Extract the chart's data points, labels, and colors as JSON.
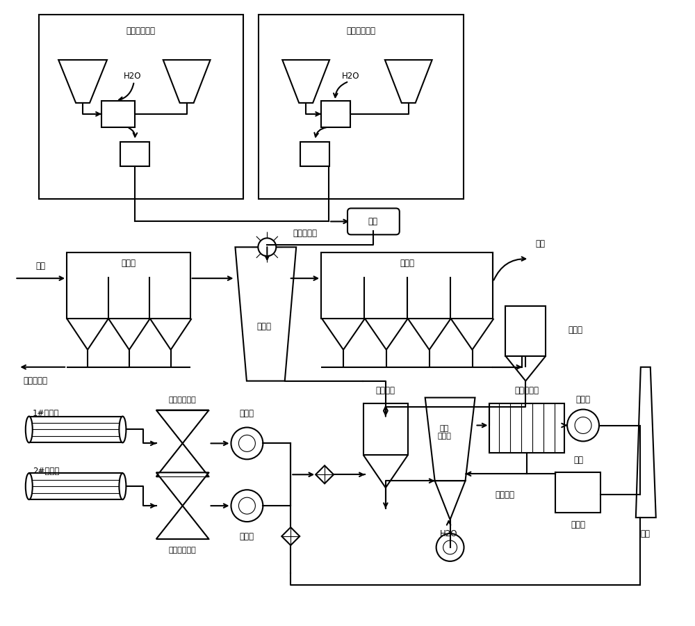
{
  "bg": "#ffffff",
  "lc": "#000000",
  "lw": 1.5,
  "lw_thin": 0.8,
  "fs": 8.5,
  "fs_sm": 8,
  "labels": {
    "lime1": "石灯消化装置",
    "lime2": "石灯消化装置",
    "h2o": "H2O",
    "top_tank": "顶罐",
    "rot_atom": "旋转雾化器",
    "dust1": "除尘器",
    "dust2": "除尘器",
    "flue_gas": "烟气",
    "desulf_tower": "脱硫塔",
    "dust_pre": "粉尘预收集",
    "chimney_top": "烟囱",
    "buffer_silo": "缓冲仓",
    "sint1": "1#烧结机",
    "sint2": "2#烧结机",
    "elec1": "机头电除尘器",
    "elec2": "机头电除尘器",
    "exhaust1": "抽风机",
    "exhaust2": "抽风机",
    "desulf_silo": "脱硫剂仓",
    "absorb_tower": "脱硫\n吸收塔",
    "bag_filter": "布袋除尘器",
    "ind_fan": "引风机",
    "ash_silo": "灰仓",
    "byproduct": "副产物",
    "mat_cycle": "物料循环",
    "chimney_bot": "烟囱",
    "h2o2": "H2O"
  }
}
